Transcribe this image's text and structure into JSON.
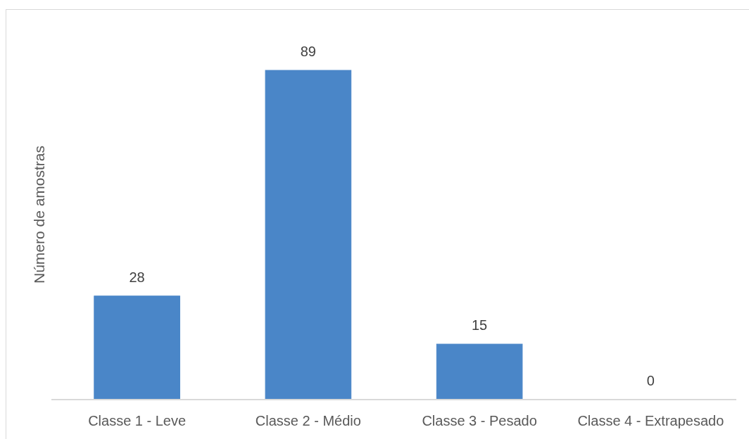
{
  "chart_data": {
    "type": "bar",
    "ylabel": "Número de amostras",
    "categories": [
      "Classe 1 - Leve",
      "Classe 2 - Médio",
      "Classe 3 - Pesado",
      "Classe 4 - Extrapesado"
    ],
    "values": [
      28,
      89,
      15,
      0
    ],
    "color": "#4a86c8",
    "data_labels": true
  }
}
